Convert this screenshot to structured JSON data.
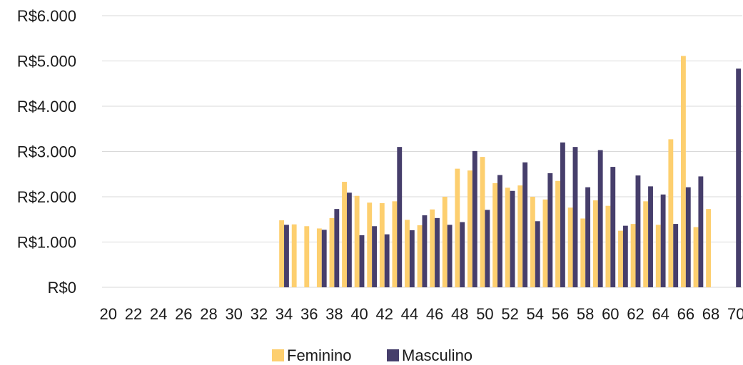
{
  "chart_data": {
    "type": "bar",
    "title": "",
    "xlabel": "",
    "ylabel": "",
    "ylim": [
      0,
      6000
    ],
    "y_ticks": [
      0,
      1000,
      2000,
      3000,
      4000,
      5000,
      6000
    ],
    "y_tick_labels": [
      "R$0",
      "R$1.000",
      "R$2.000",
      "R$3.000",
      "R$4.000",
      "R$5.000",
      "R$6.000"
    ],
    "categories": [
      20,
      21,
      22,
      23,
      24,
      25,
      26,
      27,
      28,
      29,
      30,
      31,
      32,
      33,
      34,
      35,
      36,
      37,
      38,
      39,
      40,
      41,
      42,
      43,
      44,
      45,
      46,
      47,
      48,
      49,
      50,
      51,
      52,
      53,
      54,
      55,
      56,
      57,
      58,
      59,
      60,
      61,
      62,
      63,
      64,
      65,
      66,
      67,
      68,
      69,
      70
    ],
    "x_tick_labels": [
      "20",
      "22",
      "24",
      "26",
      "28",
      "30",
      "32",
      "34",
      "36",
      "38",
      "40",
      "42",
      "44",
      "46",
      "48",
      "50",
      "52",
      "54",
      "56",
      "58",
      "60",
      "62",
      "64",
      "66",
      "68",
      "70"
    ],
    "grid": "horizontal",
    "legend_position": "bottom",
    "series": [
      {
        "name": "Feminino",
        "color": "#FDCF6F",
        "values": [
          null,
          null,
          null,
          null,
          null,
          null,
          null,
          null,
          null,
          null,
          null,
          null,
          null,
          null,
          1480,
          1390,
          1350,
          1300,
          1530,
          2330,
          2020,
          1870,
          1860,
          1900,
          1490,
          1370,
          1720,
          2000,
          2620,
          2580,
          2880,
          2300,
          2200,
          2250,
          2000,
          1940,
          2350,
          1760,
          1520,
          1920,
          1800,
          1250,
          1400,
          1900,
          1380,
          3270,
          5110,
          1330,
          1730,
          null,
          null
        ]
      },
      {
        "name": "Masculino",
        "color": "#463E6B",
        "values": [
          null,
          null,
          null,
          null,
          null,
          null,
          null,
          null,
          null,
          null,
          null,
          null,
          null,
          null,
          1380,
          null,
          null,
          1270,
          1730,
          2090,
          1150,
          1350,
          1170,
          3100,
          1260,
          1590,
          1530,
          1380,
          1440,
          3010,
          1710,
          2480,
          2130,
          2760,
          1460,
          2520,
          3200,
          3100,
          2210,
          3030,
          2660,
          1360,
          2470,
          2230,
          2050,
          1400,
          2210,
          2450,
          null,
          null,
          4830
        ]
      }
    ]
  }
}
